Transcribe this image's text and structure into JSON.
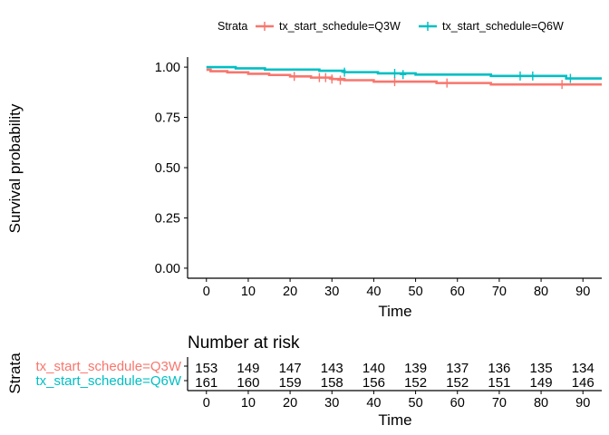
{
  "legend": {
    "title": "Strata",
    "items": [
      {
        "label": "tx_start_schedule=Q3W",
        "color": "#F8766D"
      },
      {
        "label": "tx_start_schedule=Q6W",
        "color": "#00BFC4"
      }
    ]
  },
  "risk_table": {
    "title": "Number at risk",
    "ylabel": "Strata",
    "xlabel": "Time",
    "times": [
      0,
      10,
      20,
      30,
      40,
      50,
      60,
      70,
      80,
      90
    ],
    "rows": [
      {
        "label": "tx_start_schedule=Q3W",
        "color": "#F8766D",
        "counts": [
          "153",
          "149",
          "147",
          "143",
          "140",
          "139",
          "137",
          "136",
          "135",
          "134"
        ]
      },
      {
        "label": "tx_start_schedule=Q6W",
        "color": "#00BFC4",
        "counts": [
          "161",
          "160",
          "159",
          "158",
          "156",
          "152",
          "152",
          "151",
          "149",
          "146"
        ]
      }
    ]
  },
  "chart_data": {
    "type": "line",
    "title": "",
    "xlabel": "Time",
    "ylabel": "Survival probability",
    "xlim": [
      -4.5,
      94.5
    ],
    "ylim": [
      -0.05,
      1.05
    ],
    "x_ticks": [
      "0",
      "10",
      "20",
      "30",
      "40",
      "50",
      "60",
      "70",
      "80",
      "90"
    ],
    "y_ticks": [
      "0.00",
      "0.25",
      "0.50",
      "0.75",
      "1.00"
    ],
    "grid": false,
    "legend_position": "top",
    "step": true,
    "series": [
      {
        "name": "tx_start_schedule=Q3W",
        "color": "#F8766D",
        "x": [
          0,
          1,
          5,
          10,
          15,
          20,
          25,
          30,
          33,
          40,
          50,
          55,
          60,
          68,
          70,
          94.5
        ],
        "y": [
          0.987,
          0.98,
          0.974,
          0.967,
          0.961,
          0.954,
          0.948,
          0.941,
          0.935,
          0.928,
          0.928,
          0.921,
          0.921,
          0.914,
          0.914,
          0.914
        ],
        "censor_x": [
          21,
          27,
          28.5,
          30,
          32,
          45,
          57.5,
          85
        ],
        "censor_y": [
          0.954,
          0.948,
          0.948,
          0.941,
          0.935,
          0.928,
          0.921,
          0.914
        ]
      },
      {
        "name": "tx_start_schedule=Q6W",
        "color": "#00BFC4",
        "x": [
          0,
          7,
          14,
          20,
          27,
          33,
          41,
          50,
          57,
          68,
          86,
          94.5
        ],
        "y": [
          1.0,
          0.994,
          0.988,
          0.988,
          0.982,
          0.975,
          0.969,
          0.963,
          0.963,
          0.956,
          0.944,
          0.944
        ],
        "censor_x": [
          33,
          45,
          47,
          75,
          78,
          87
        ],
        "censor_y": [
          0.975,
          0.969,
          0.963,
          0.956,
          0.956,
          0.944
        ]
      }
    ]
  }
}
